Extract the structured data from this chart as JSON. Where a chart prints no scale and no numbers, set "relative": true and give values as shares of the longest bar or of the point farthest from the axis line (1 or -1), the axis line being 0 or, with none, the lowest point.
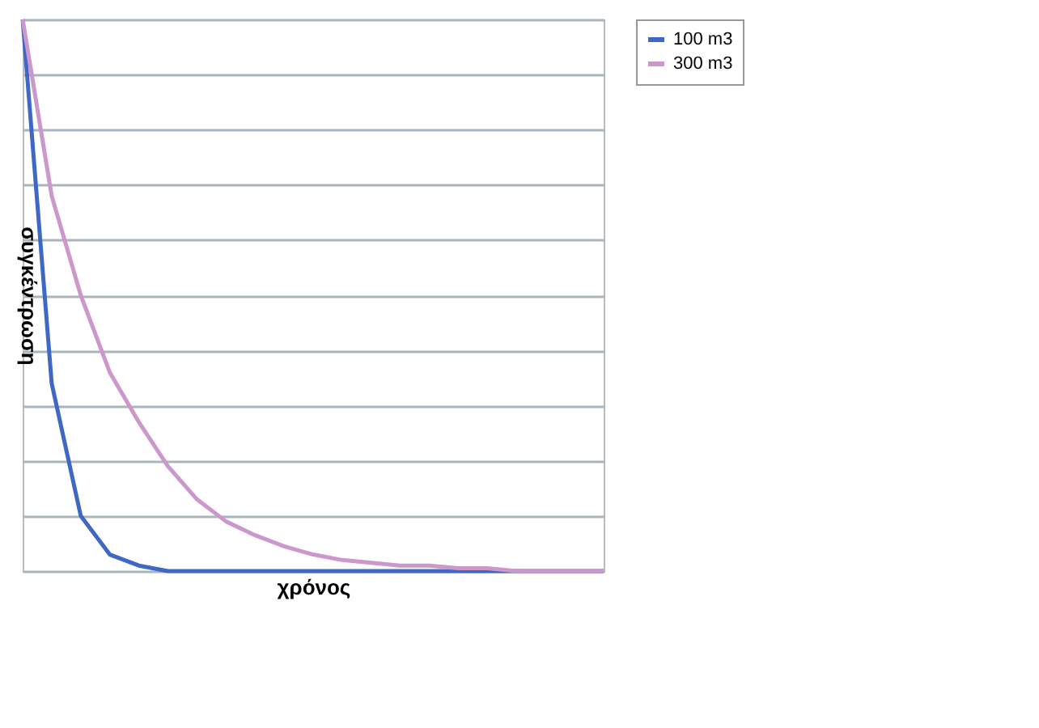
{
  "chart_data": {
    "type": "line",
    "xlabel": "χρόνος",
    "ylabel": "συγκέντρωση",
    "relative": true,
    "grid": "y",
    "legend": "right",
    "line_style": "solid",
    "marker": "none",
    "categories": [
      null,
      null,
      null,
      null,
      null,
      null,
      null,
      null,
      null,
      null,
      null,
      null,
      null,
      null,
      null,
      null,
      null,
      null,
      null,
      null,
      null
    ],
    "series": [
      {
        "name": "100 m3",
        "color": "#3f68c4",
        "values": [
          1,
          0.34,
          0.1,
          0.03,
          0.01,
          0,
          0,
          0,
          0,
          0,
          0,
          0,
          0,
          0,
          0,
          0,
          0,
          0,
          0,
          0,
          0
        ]
      },
      {
        "name": "300 m3",
        "color": "#cc98cc",
        "values": [
          1,
          0.68,
          0.5,
          0.36,
          0.27,
          0.19,
          0.13,
          0.09,
          0.065,
          0.045,
          0.03,
          0.02,
          0.015,
          0.01,
          0.01,
          0.005,
          0.005,
          0,
          0,
          0,
          0
        ]
      }
    ]
  }
}
